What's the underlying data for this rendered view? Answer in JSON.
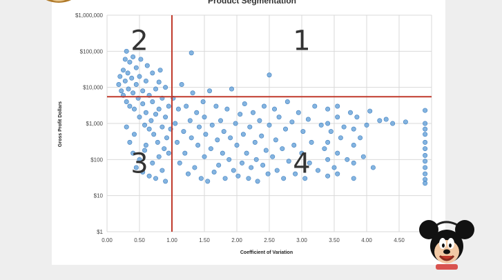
{
  "chart_data": {
    "type": "scatter",
    "title": "Product Segmentation",
    "xlabel": "Coefficient of Variation",
    "ylabel": "Gross Profit Dollars",
    "x_scale": "linear",
    "y_scale": "log",
    "xlim": [
      0,
      5
    ],
    "ylim": [
      1,
      1000000
    ],
    "x_ticks": [
      "0.00",
      "0.50",
      "1.00",
      "1.50",
      "2.00",
      "2.50",
      "3.00",
      "3.50",
      "4.00",
      "4.50"
    ],
    "y_ticks": [
      "$1",
      "$10",
      "$100",
      "$1,000",
      "$10,000",
      "$100,000",
      "$1,000,000"
    ],
    "grid": true,
    "point_color": "#5b9bd5",
    "divider_color": "#c0392b",
    "dividers": {
      "x": 1.0,
      "y": 5500
    },
    "quadrant_labels": [
      {
        "text": "1",
        "x": 3.0,
        "y": 200000
      },
      {
        "text": "2",
        "x": 0.5,
        "y": 200000
      },
      {
        "text": "3",
        "x": 0.5,
        "y": 80
      },
      {
        "text": "4",
        "x": 3.0,
        "y": 80
      }
    ],
    "points": [
      [
        0.18,
        12000
      ],
      [
        0.2,
        20000
      ],
      [
        0.22,
        8000
      ],
      [
        0.25,
        30000
      ],
      [
        0.25,
        6000
      ],
      [
        0.28,
        15000
      ],
      [
        0.28,
        60000
      ],
      [
        0.3,
        4000
      ],
      [
        0.3,
        100000
      ],
      [
        0.32,
        25000
      ],
      [
        0.33,
        9000
      ],
      [
        0.35,
        50000
      ],
      [
        0.35,
        3000
      ],
      [
        0.38,
        18000
      ],
      [
        0.4,
        70000
      ],
      [
        0.4,
        7000
      ],
      [
        0.42,
        2500
      ],
      [
        0.45,
        35000
      ],
      [
        0.45,
        12000
      ],
      [
        0.48,
        5000
      ],
      [
        0.5,
        1500
      ],
      [
        0.5,
        20000
      ],
      [
        0.52,
        60000
      ],
      [
        0.55,
        8000
      ],
      [
        0.55,
        3500
      ],
      [
        0.58,
        900
      ],
      [
        0.6,
        15000
      ],
      [
        0.6,
        2000
      ],
      [
        0.62,
        40000
      ],
      [
        0.65,
        6000
      ],
      [
        0.65,
        700
      ],
      [
        0.68,
        1200
      ],
      [
        0.7,
        25000
      ],
      [
        0.7,
        4000
      ],
      [
        0.72,
        500
      ],
      [
        0.75,
        9000
      ],
      [
        0.75,
        1800
      ],
      [
        0.78,
        300
      ],
      [
        0.8,
        14000
      ],
      [
        0.8,
        2500
      ],
      [
        0.82,
        30000
      ],
      [
        0.85,
        800
      ],
      [
        0.85,
        5000
      ],
      [
        0.88,
        200
      ],
      [
        0.9,
        1500
      ],
      [
        0.9,
        10000
      ],
      [
        0.92,
        400
      ],
      [
        0.95,
        3000
      ],
      [
        0.95,
        150
      ],
      [
        0.98,
        700
      ],
      [
        0.35,
        300
      ],
      [
        0.4,
        150
      ],
      [
        0.45,
        60
      ],
      [
        0.5,
        100
      ],
      [
        0.55,
        45
      ],
      [
        0.6,
        250
      ],
      [
        0.65,
        35
      ],
      [
        0.7,
        80
      ],
      [
        0.75,
        30
      ],
      [
        0.8,
        120
      ],
      [
        0.85,
        50
      ],
      [
        0.9,
        25
      ],
      [
        0.3,
        800
      ],
      [
        0.42,
        500
      ],
      [
        0.58,
        180
      ],
      [
        1.02,
        5000
      ],
      [
        1.05,
        1000
      ],
      [
        1.08,
        300
      ],
      [
        1.1,
        2500
      ],
      [
        1.12,
        80
      ],
      [
        1.15,
        12000
      ],
      [
        1.18,
        600
      ],
      [
        1.2,
        150
      ],
      [
        1.22,
        3000
      ],
      [
        1.25,
        40
      ],
      [
        1.28,
        1200
      ],
      [
        1.3,
        400
      ],
      [
        1.3,
        90000
      ],
      [
        1.32,
        7000
      ],
      [
        1.35,
        60
      ],
      [
        1.38,
        2000
      ],
      [
        1.4,
        250
      ],
      [
        1.42,
        800
      ],
      [
        1.45,
        30
      ],
      [
        1.48,
        4000
      ],
      [
        1.5,
        120
      ],
      [
        1.5,
        1500
      ],
      [
        1.52,
        500
      ],
      [
        1.55,
        25
      ],
      [
        1.58,
        8000
      ],
      [
        1.6,
        200
      ],
      [
        1.62,
        900
      ],
      [
        1.65,
        45
      ],
      [
        1.68,
        3000
      ],
      [
        1.7,
        350
      ],
      [
        1.72,
        70
      ],
      [
        1.75,
        1200
      ],
      [
        1.78,
        150
      ],
      [
        1.8,
        600
      ],
      [
        1.82,
        30
      ],
      [
        1.85,
        2500
      ],
      [
        1.88,
        100
      ],
      [
        1.9,
        400
      ],
      [
        1.92,
        9000
      ],
      [
        1.95,
        50
      ],
      [
        1.98,
        1000
      ],
      [
        2.0,
        250
      ],
      [
        2.02,
        35
      ],
      [
        2.05,
        1800
      ],
      [
        2.08,
        80
      ],
      [
        2.1,
        500
      ],
      [
        2.12,
        3500
      ],
      [
        2.15,
        150
      ],
      [
        2.18,
        30
      ],
      [
        2.2,
        800
      ],
      [
        2.22,
        60
      ],
      [
        2.25,
        2000
      ],
      [
        2.28,
        300
      ],
      [
        2.3,
        100
      ],
      [
        2.32,
        25
      ],
      [
        2.35,
        1200
      ],
      [
        2.38,
        450
      ],
      [
        2.4,
        70
      ],
      [
        2.42,
        3000
      ],
      [
        2.45,
        180
      ],
      [
        2.48,
        40
      ],
      [
        2.5,
        22000
      ],
      [
        2.5,
        900
      ],
      [
        2.55,
        120
      ],
      [
        2.58,
        2500
      ],
      [
        2.6,
        350
      ],
      [
        2.62,
        50
      ],
      [
        2.65,
        1500
      ],
      [
        2.7,
        200
      ],
      [
        2.72,
        30
      ],
      [
        2.75,
        700
      ],
      [
        2.78,
        4000
      ],
      [
        2.8,
        90
      ],
      [
        2.85,
        1100
      ],
      [
        2.88,
        250
      ],
      [
        2.9,
        40
      ],
      [
        2.95,
        2000
      ],
      [
        3.0,
        150
      ],
      [
        3.02,
        600
      ],
      [
        3.05,
        30
      ],
      [
        3.1,
        1300
      ],
      [
        3.12,
        80
      ],
      [
        3.15,
        300
      ],
      [
        3.2,
        3000
      ],
      [
        3.25,
        50
      ],
      [
        3.3,
        900
      ],
      [
        3.35,
        200
      ],
      [
        3.4,
        35
      ],
      [
        3.4,
        100
      ],
      [
        3.4,
        300
      ],
      [
        3.4,
        1000
      ],
      [
        3.4,
        2500
      ],
      [
        3.45,
        600
      ],
      [
        3.5,
        60
      ],
      [
        3.55,
        1500
      ],
      [
        3.55,
        3000
      ],
      [
        3.55,
        150
      ],
      [
        3.55,
        40
      ],
      [
        3.6,
        400
      ],
      [
        3.65,
        800
      ],
      [
        3.7,
        100
      ],
      [
        3.75,
        2000
      ],
      [
        3.8,
        30
      ],
      [
        3.8,
        80
      ],
      [
        3.8,
        250
      ],
      [
        3.8,
        700
      ],
      [
        3.85,
        1500
      ],
      [
        3.9,
        400
      ],
      [
        3.95,
        120
      ],
      [
        4.0,
        900
      ],
      [
        4.05,
        2200
      ],
      [
        4.1,
        60
      ],
      [
        4.2,
        1200
      ],
      [
        4.3,
        1300
      ],
      [
        4.4,
        1000
      ],
      [
        4.6,
        1100
      ],
      [
        4.9,
        2300
      ],
      [
        4.9,
        1000
      ],
      [
        4.9,
        700
      ],
      [
        4.9,
        500
      ],
      [
        4.9,
        300
      ],
      [
        4.9,
        200
      ],
      [
        4.9,
        130
      ],
      [
        4.9,
        90
      ],
      [
        4.9,
        60
      ],
      [
        4.9,
        40
      ],
      [
        4.9,
        28
      ],
      [
        4.9,
        22
      ]
    ]
  }
}
